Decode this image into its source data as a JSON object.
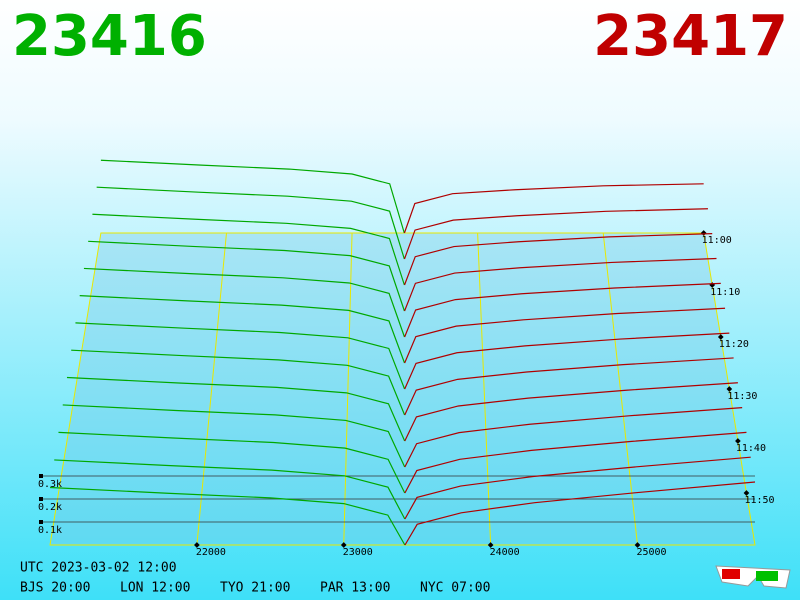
{
  "chart_data": {
    "type": "depth3d",
    "best_bid": 23416,
    "best_ask": 23417,
    "bid_color": "#00a800",
    "ask_color": "#b00000",
    "xlim": [
      21000,
      25800
    ],
    "xticks": [
      22000,
      23000,
      24000,
      25000
    ],
    "zticks": [
      {
        "value": 100,
        "label": "0.1k"
      },
      {
        "value": 200,
        "label": "0.2k"
      },
      {
        "value": 300,
        "label": "0.3k"
      }
    ],
    "times": [
      "11:00",
      null,
      "11:10",
      null,
      "11:20",
      null,
      "11:30",
      null,
      "11:40",
      null,
      "11:50",
      null,
      null
    ],
    "bid_prices": [
      21000,
      21800,
      22500,
      23000,
      23300,
      23416
    ],
    "ask_prices": [
      23417,
      23500,
      23800,
      24300,
      25000,
      25800
    ],
    "slices": [
      {
        "bids": [
          370,
          345,
          325,
          300,
          250,
          0
        ],
        "asks": [
          0,
          150,
          200,
          220,
          240,
          250
        ]
      },
      {
        "bids": [
          360,
          335,
          315,
          290,
          240,
          0
        ],
        "asks": [
          0,
          145,
          195,
          217,
          239,
          252
        ]
      },
      {
        "bids": [
          350,
          325,
          305,
          280,
          230,
          0
        ],
        "asks": [
          0,
          140,
          190,
          214,
          238,
          254
        ]
      },
      {
        "bids": [
          340,
          315,
          295,
          270,
          220,
          0
        ],
        "asks": [
          0,
          135,
          185,
          211,
          237,
          256
        ]
      },
      {
        "bids": [
          330,
          305,
          285,
          260,
          210,
          0
        ],
        "asks": [
          0,
          130,
          180,
          208,
          236,
          258
        ]
      },
      {
        "bids": [
          320,
          295,
          275,
          250,
          200,
          0
        ],
        "asks": [
          0,
          125,
          175,
          205,
          235,
          260
        ]
      },
      {
        "bids": [
          310,
          285,
          265,
          240,
          190,
          0
        ],
        "asks": [
          0,
          120,
          170,
          202,
          234,
          262
        ]
      },
      {
        "bids": [
          300,
          275,
          255,
          230,
          180,
          0
        ],
        "asks": [
          0,
          115,
          165,
          199,
          233,
          264
        ]
      },
      {
        "bids": [
          290,
          265,
          245,
          220,
          170,
          0
        ],
        "asks": [
          0,
          110,
          160,
          196,
          232,
          266
        ]
      },
      {
        "bids": [
          280,
          255,
          235,
          210,
          160,
          0
        ],
        "asks": [
          0,
          105,
          155,
          193,
          231,
          268
        ]
      },
      {
        "bids": [
          270,
          245,
          225,
          200,
          150,
          0
        ],
        "asks": [
          0,
          100,
          150,
          190,
          230,
          270
        ]
      },
      {
        "bids": [
          260,
          235,
          215,
          190,
          140,
          0
        ],
        "asks": [
          0,
          95,
          145,
          187,
          229,
          272
        ]
      },
      {
        "bids": [
          250,
          225,
          205,
          180,
          130,
          0
        ],
        "asks": [
          0,
          90,
          140,
          184,
          228,
          274
        ]
      }
    ]
  },
  "footer": {
    "utc": "UTC 2023-03-02 12:00",
    "clocks": [
      "BJS 20:00",
      "LON 12:00",
      "TYO 21:00",
      "PAR 13:00",
      "NYC 07:00"
    ]
  }
}
